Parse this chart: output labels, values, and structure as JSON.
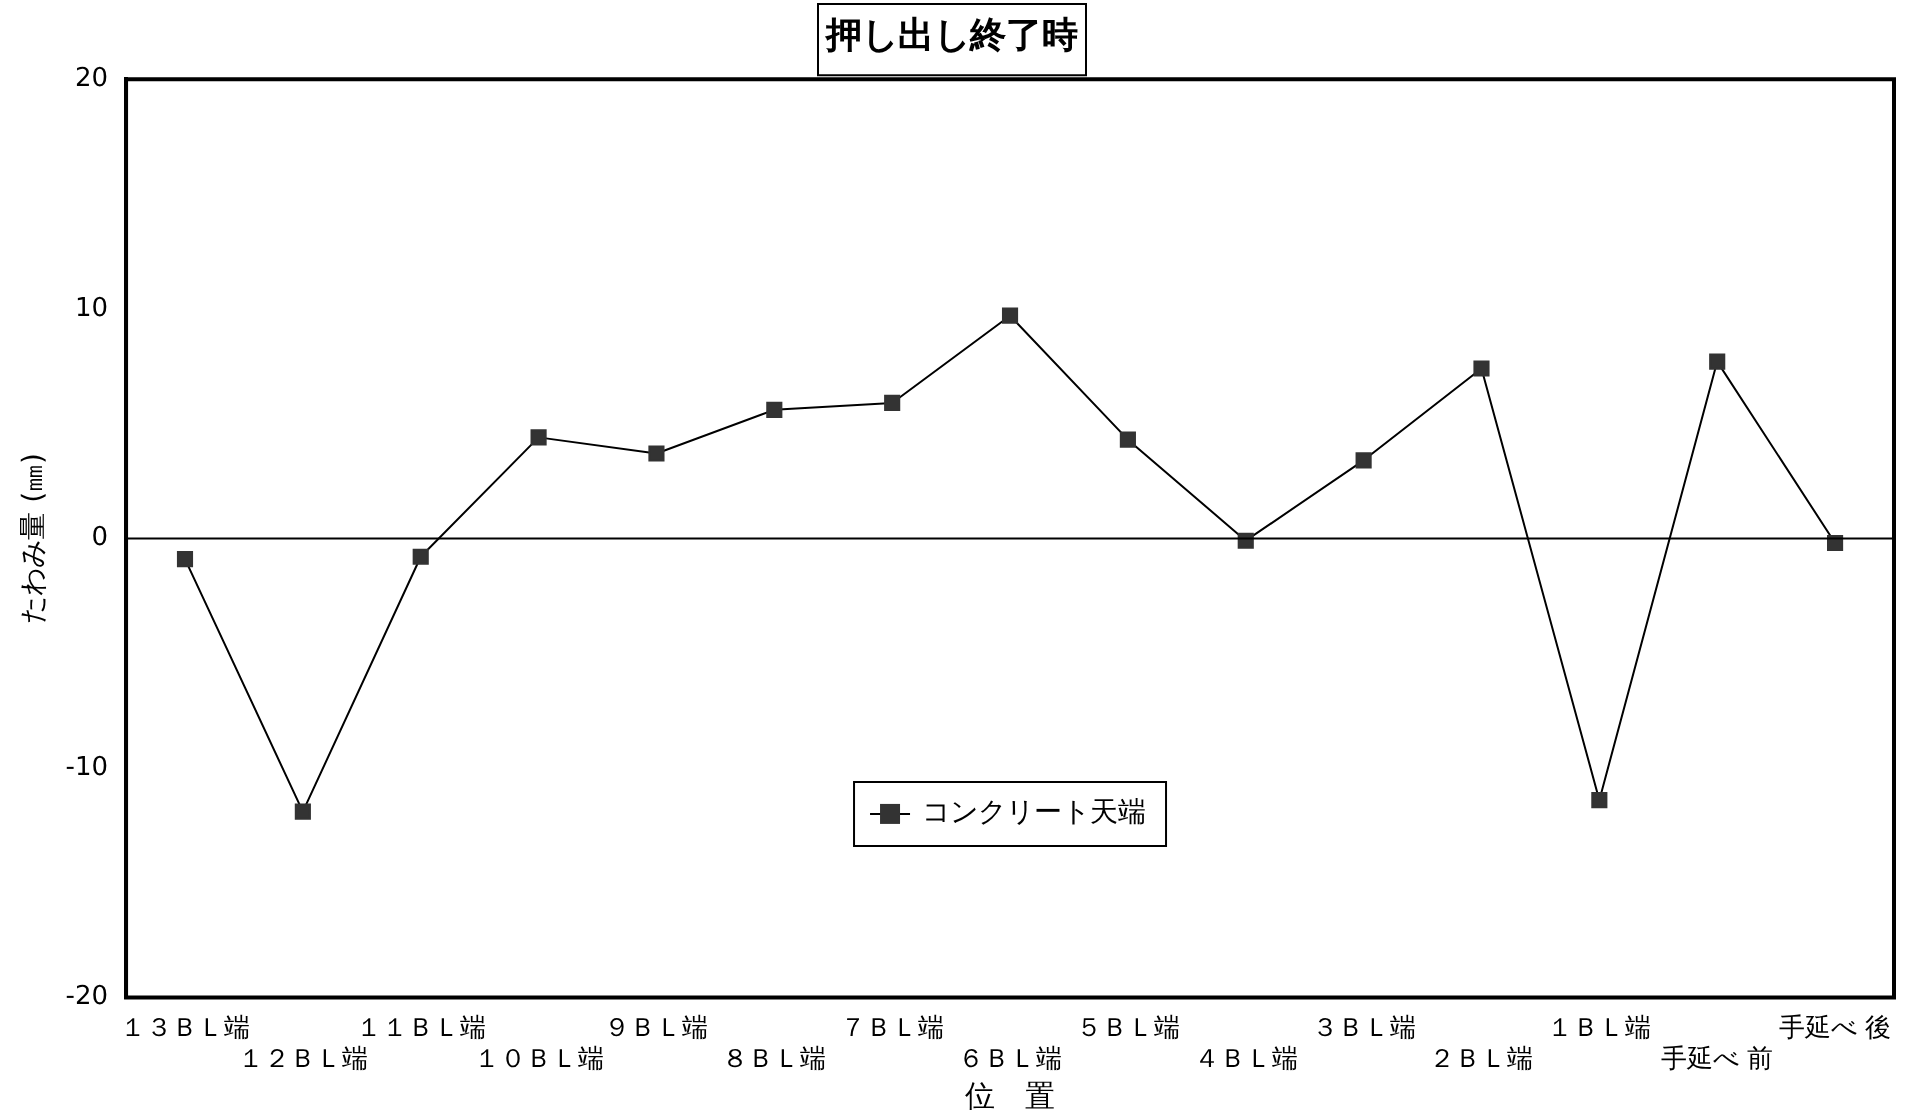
{
  "chart_data": {
    "type": "line",
    "title": "押し出し終了時",
    "xlabel": "位　置",
    "ylabel": "たわみ量 (㎜)",
    "categories": [
      "１３ＢＬ端",
      "１２ＢＬ端",
      "１１ＢＬ端",
      "１０ＢＬ端",
      "９ＢＬ端",
      "８ＢＬ端",
      "７ＢＬ端",
      "６ＢＬ端",
      "５ＢＬ端",
      "４ＢＬ端",
      "３ＢＬ端",
      "２ＢＬ端",
      "１ＢＬ端",
      "手延べ 前",
      "手延べ 後"
    ],
    "series": [
      {
        "name": "コンクリート天端",
        "color": "#333333",
        "values": [
          -0.9,
          -11.9,
          -0.8,
          4.4,
          3.7,
          5.6,
          5.9,
          9.7,
          4.3,
          -0.1,
          3.4,
          7.4,
          -11.4,
          7.7,
          -0.2
        ]
      }
    ],
    "ylim": [
      -20,
      20
    ],
    "yticks": [
      -20,
      -10,
      0,
      10,
      20
    ],
    "grid": false,
    "legend": "bottom",
    "marker": "square",
    "line_style": "solid",
    "ref_lines": [
      {
        "axis": "y",
        "value": 0,
        "color": "#000000"
      }
    ]
  }
}
